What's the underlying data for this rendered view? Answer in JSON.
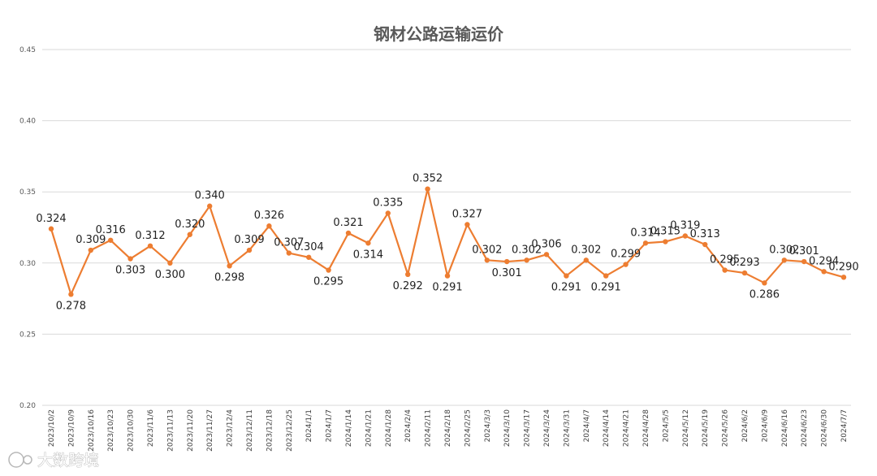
{
  "watermark": "大数跨境",
  "chart_data": {
    "type": "line",
    "title": "钢材公路运输运价",
    "xlabel": "",
    "ylabel": "",
    "ylim": [
      0.2,
      0.45
    ],
    "yticks": [
      "0.20",
      "0.25",
      "0.30",
      "0.35",
      "0.40",
      "0.45"
    ],
    "ytick_values": [
      0.2,
      0.25,
      0.3,
      0.35,
      0.4,
      0.45
    ],
    "grid": true,
    "series_color": "#ED7D31",
    "categories": [
      "2023/10/2",
      "2023/10/9",
      "2023/10/16",
      "2023/10/23",
      "2023/10/30",
      "2023/11/6",
      "2023/11/13",
      "2023/11/20",
      "2023/11/27",
      "2023/12/4",
      "2023/12/11",
      "2023/12/18",
      "2023/12/25",
      "2024/1/1",
      "2024/1/7",
      "2024/1/14",
      "2024/1/21",
      "2024/1/28",
      "2024/2/4",
      "2024/2/11",
      "2024/2/18",
      "2024/2/25",
      "2024/3/3",
      "2024/3/10",
      "2024/3/17",
      "2024/3/24",
      "2024/3/31",
      "2024/4/7",
      "2024/4/14",
      "2024/4/21",
      "2024/4/28",
      "2024/5/5",
      "2024/5/12",
      "2024/5/19",
      "2024/5/26",
      "2024/6/2",
      "2024/6/9",
      "2024/6/16",
      "2024/6/23",
      "2024/6/30",
      "2024/7/7"
    ],
    "values": [
      0.324,
      0.278,
      0.309,
      0.316,
      0.303,
      0.312,
      0.3,
      0.32,
      0.34,
      0.298,
      0.309,
      0.326,
      0.307,
      0.304,
      0.295,
      0.321,
      0.314,
      0.335,
      0.292,
      0.352,
      0.291,
      0.327,
      0.302,
      0.301,
      0.302,
      0.306,
      0.291,
      0.302,
      0.291,
      0.299,
      0.314,
      0.315,
      0.319,
      0.313,
      0.295,
      0.293,
      0.286,
      0.302,
      0.301,
      0.294,
      0.29
    ],
    "labels": [
      "0.324",
      "0.278",
      "0.309",
      "0.316",
      "0.303",
      "0.312",
      "0.300",
      "0.320",
      "0.340",
      "0.298",
      "0.309",
      "0.326",
      "0.307",
      "0.304",
      "0.295",
      "0.321",
      "0.314",
      "0.335",
      "0.292",
      "0.352",
      "0.291",
      "0.327",
      "0.302",
      "0.301",
      "0.302",
      "0.306",
      "0.291",
      "0.302",
      "0.291",
      "0.299",
      "0.314",
      "0.315",
      "0.319",
      "0.313",
      "0.295",
      "0.293",
      "0.286",
      "0.302",
      "0.301",
      "0.294",
      "0.290"
    ]
  }
}
